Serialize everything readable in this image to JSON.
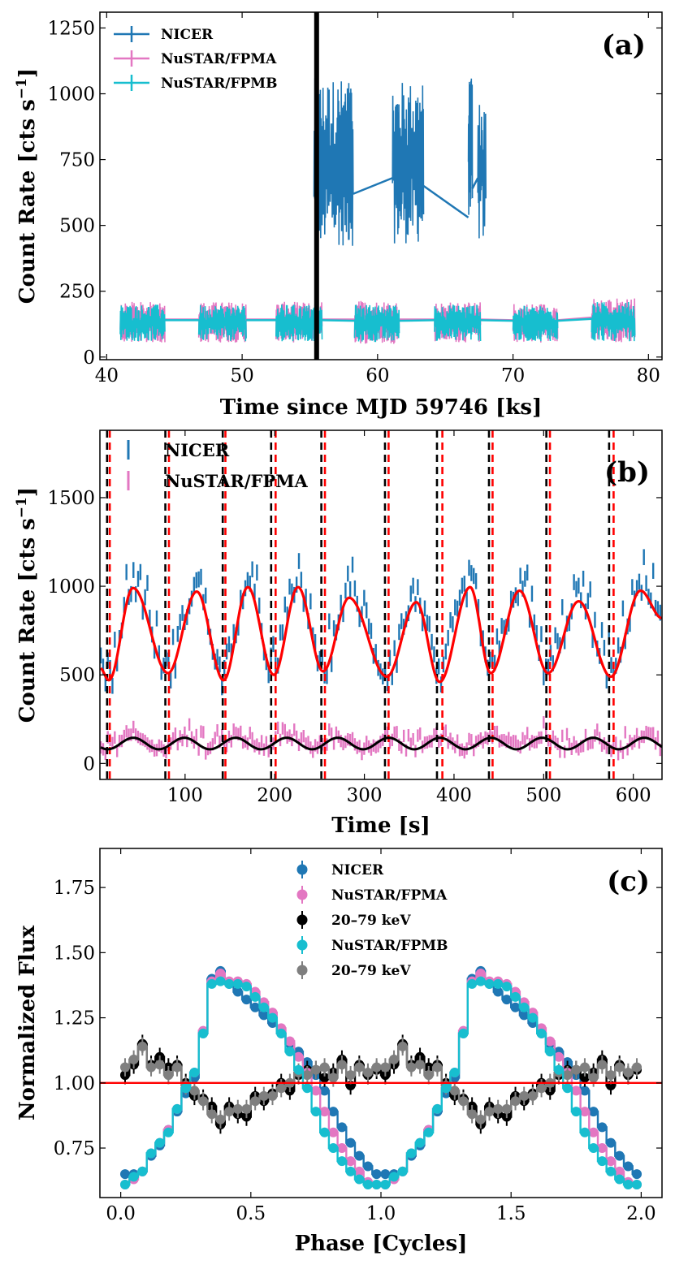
{
  "colors": {
    "nicer": "#1f77b4",
    "fpma": "#e377c2",
    "fpmb": "#17becf",
    "hard_a": "#000000",
    "hard_b": "#7f7f7f",
    "fit": "#ff0000",
    "axis": "#000000"
  },
  "chart_data": [
    {
      "type": "line",
      "panel_label": "(a)",
      "xlabel": "Time since MJD 59746 [ks]",
      "ylabel": "Count Rate [cts s$^{-1}$]",
      "ylabel_main": "Count Rate [cts s",
      "ylabel_sup": "−1",
      "ylabel_close": "]",
      "xlim": [
        39.5,
        81
      ],
      "ylim": [
        -10,
        1310
      ],
      "xticks": [
        40,
        50,
        60,
        70,
        80
      ],
      "yticks": [
        0,
        250,
        500,
        750,
        1000,
        1250
      ],
      "vline_x": 55.5,
      "legend": [
        "NICER",
        "NuSTAR/FPMA",
        "NuSTAR/FPMB"
      ],
      "legend_position": "top-left",
      "series": [
        {
          "name": "NICER",
          "segments": [
            {
              "t_start": 55.3,
              "t_end": 58.2,
              "min": 420,
              "max": 1060
            },
            {
              "t_start": 61.1,
              "t_end": 63.4,
              "min": 430,
              "max": 1050
            },
            {
              "t_start": 66.7,
              "t_end": 67.0,
              "min": 530,
              "max": 1060
            },
            {
              "t_start": 67.4,
              "t_end": 68.0,
              "min": 430,
              "max": 980
            }
          ],
          "connectors": [
            [
              58.2,
              620,
              61.1,
              680
            ],
            [
              63.4,
              650,
              66.7,
              530
            ],
            [
              67.0,
              640,
              67.4,
              680
            ]
          ]
        },
        {
          "name": "NuSTAR/FPMA",
          "segments": [
            {
              "t_start": 41.0,
              "t_end": 44.3,
              "min": 55,
              "max": 210
            },
            {
              "t_start": 46.8,
              "t_end": 50.3,
              "min": 55,
              "max": 210
            },
            {
              "t_start": 52.5,
              "t_end": 55.9,
              "min": 55,
              "max": 210
            },
            {
              "t_start": 58.3,
              "t_end": 61.6,
              "min": 50,
              "max": 215
            },
            {
              "t_start": 64.2,
              "t_end": 67.6,
              "min": 55,
              "max": 210
            },
            {
              "t_start": 70.0,
              "t_end": 73.3,
              "min": 55,
              "max": 205
            },
            {
              "t_start": 75.8,
              "t_end": 79.0,
              "min": 55,
              "max": 225
            }
          ]
        },
        {
          "name": "NuSTAR/FPMB",
          "segments": [
            {
              "t_start": 41.0,
              "t_end": 44.3,
              "min": 60,
              "max": 200
            },
            {
              "t_start": 46.8,
              "t_end": 50.3,
              "min": 60,
              "max": 200
            },
            {
              "t_start": 52.5,
              "t_end": 55.9,
              "min": 60,
              "max": 200
            },
            {
              "t_start": 58.3,
              "t_end": 61.6,
              "min": 55,
              "max": 200
            },
            {
              "t_start": 64.2,
              "t_end": 67.6,
              "min": 60,
              "max": 200
            },
            {
              "t_start": 70.0,
              "t_end": 73.3,
              "min": 60,
              "max": 195
            },
            {
              "t_start": 75.8,
              "t_end": 79.0,
              "min": 60,
              "max": 210
            }
          ]
        }
      ]
    },
    {
      "type": "line",
      "panel_label": "(b)",
      "xlabel": "Time [s]",
      "ylabel_main": "Count Rate [cts s",
      "ylabel_sup": "−1",
      "ylabel_close": "]",
      "xlim": [
        5,
        632
      ],
      "ylim": [
        -90,
        1880
      ],
      "xticks": [
        100,
        200,
        300,
        400,
        500,
        600
      ],
      "yticks": [
        0,
        500,
        1000,
        1500
      ],
      "legend": [
        "NICER",
        "NuSTAR/FPMA"
      ],
      "legend_position": "top-left",
      "black_dashed_lines_x": [
        13,
        78,
        142,
        196,
        252,
        323,
        381,
        439,
        503,
        573
      ],
      "red_dashed_lines_x": [
        16,
        82,
        145,
        201,
        256,
        327,
        387,
        443,
        507,
        578
      ],
      "nicer_model": {
        "minima_t": [
          15,
          81,
          143,
          199,
          254,
          325,
          384,
          441,
          505,
          575
        ],
        "maxima_t": [
          42,
          113,
          170,
          226,
          283,
          358,
          418,
          473,
          539,
          608
        ],
        "maxima_y": [
          990,
          970,
          995,
          995,
          935,
          910,
          995,
          975,
          915,
          975
        ],
        "minima_y": [
          470,
          510,
          470,
          500,
          520,
          490,
          460,
          510,
          510,
          490
        ],
        "end": [
          632,
          820
        ]
      },
      "nustar_model": {
        "base": 90,
        "amplitude": 65,
        "period": 57,
        "phase_t": 28
      },
      "scatter_nicer": {
        "min_offset": -60,
        "max_offset": 240
      },
      "scatter_nustar": {
        "min_offset": -30,
        "max_offset": 120
      }
    },
    {
      "type": "scatter",
      "panel_label": "(c)",
      "xlabel": "Phase [Cycles]",
      "ylabel": "Normalized Flux",
      "xlim": [
        -0.08,
        2.08
      ],
      "ylim": [
        0.56,
        1.9
      ],
      "xticks": [
        0.0,
        0.5,
        1.0,
        1.5,
        2.0
      ],
      "xtick_labels": [
        "0.0",
        "0.5",
        "1.0",
        "1.5",
        "2.0"
      ],
      "yticks": [
        0.75,
        1.0,
        1.25,
        1.5,
        1.75
      ],
      "ytick_labels": [
        "0.75",
        "1.00",
        "1.25",
        "1.50",
        "1.75"
      ],
      "hline_y": 1.0,
      "legend": [
        "NICER",
        "NuSTAR/FPMA",
        "20–79 keV",
        "NuSTAR/FPMB",
        "20–79 keV"
      ],
      "legend_position": "top-center",
      "phase": [
        0.0167,
        0.05,
        0.0833,
        0.1167,
        0.15,
        0.1833,
        0.2167,
        0.25,
        0.2833,
        0.3167,
        0.35,
        0.3833,
        0.4167,
        0.45,
        0.4833,
        0.5167,
        0.55,
        0.5833,
        0.6167,
        0.65,
        0.6833,
        0.7167,
        0.75,
        0.7833,
        0.8167,
        0.85,
        0.8833,
        0.9167,
        0.95,
        0.9833
      ],
      "series": [
        {
          "name": "NICER",
          "values": [
            0.65,
            0.65,
            0.66,
            0.72,
            0.76,
            0.82,
            0.89,
            0.96,
            1.02,
            1.19,
            1.4,
            1.43,
            1.38,
            1.35,
            1.32,
            1.29,
            1.26,
            1.23,
            1.19,
            1.15,
            1.12,
            1.08,
            1.03,
            0.97,
            0.89,
            0.83,
            0.77,
            0.72,
            0.68,
            0.65
          ]
        },
        {
          "name": "NuSTAR/FPMA",
          "values": [
            0.61,
            0.63,
            0.66,
            0.73,
            0.77,
            0.82,
            0.9,
            0.98,
            1.04,
            1.2,
            1.39,
            1.42,
            1.39,
            1.39,
            1.38,
            1.35,
            1.31,
            1.27,
            1.21,
            1.16,
            1.1,
            1.04,
            0.97,
            0.89,
            0.81,
            0.75,
            0.7,
            0.66,
            0.62,
            0.61
          ]
        },
        {
          "name": "20–79 keV (FPMA)",
          "values": [
            1.03,
            1.07,
            1.15,
            1.07,
            1.1,
            1.06,
            1.07,
            1.0,
            0.95,
            0.94,
            0.91,
            0.84,
            0.91,
            0.88,
            0.87,
            0.95,
            0.93,
            0.96,
            1.0,
            0.97,
            1.03,
            1.05,
            1.05,
            1.02,
            1.04,
            1.09,
            0.99,
            1.07,
            1.03,
            1.05
          ]
        },
        {
          "name": "NuSTAR/FPMB",
          "values": [
            0.61,
            0.64,
            0.66,
            0.73,
            0.77,
            0.81,
            0.9,
            0.98,
            1.04,
            1.19,
            1.38,
            1.39,
            1.38,
            1.38,
            1.37,
            1.33,
            1.29,
            1.25,
            1.19,
            1.12,
            1.05,
            0.98,
            0.89,
            0.81,
            0.75,
            0.7,
            0.66,
            0.63,
            0.61,
            0.61
          ]
        },
        {
          "name": "20–79 keV (FPMB)",
          "values": [
            1.06,
            1.09,
            1.14,
            1.06,
            1.07,
            1.03,
            1.06,
            0.99,
            0.97,
            0.93,
            0.88,
            0.86,
            0.89,
            0.9,
            0.9,
            0.93,
            0.95,
            0.95,
            0.98,
            1.0,
            1.04,
            1.03,
            1.05,
            1.06,
            1.02,
            1.07,
            1.03,
            1.06,
            1.04,
            1.06
          ]
        }
      ]
    }
  ]
}
